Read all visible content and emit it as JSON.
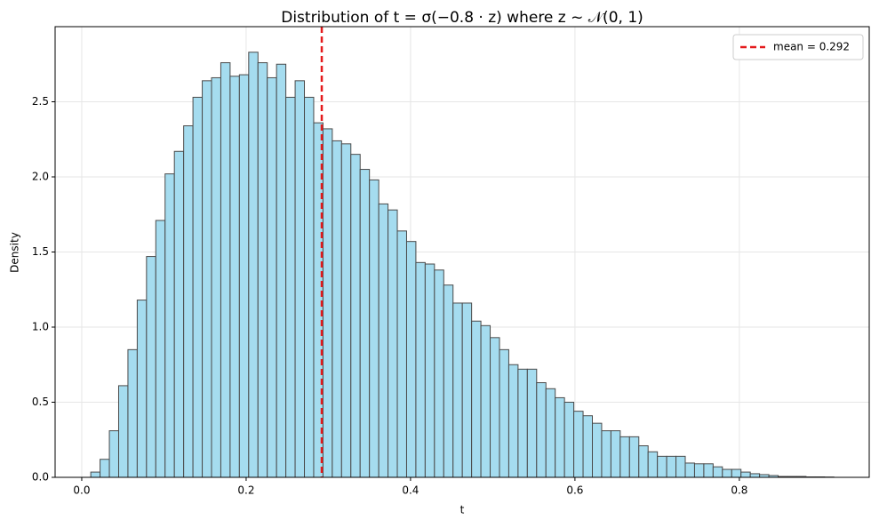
{
  "chart_data": {
    "type": "histogram",
    "title": "Distribution of t = σ(−0.8 · z) where z ~ 𝒩(0, 1)",
    "xlabel": "t",
    "ylabel": "Density",
    "bins": [
      0.011,
      0.0223,
      0.0336,
      0.0449,
      0.0562,
      0.0675,
      0.0788,
      0.0901,
      0.1014,
      0.1127,
      0.124,
      0.1353,
      0.1466,
      0.1579,
      0.1692,
      0.1805,
      0.1918,
      0.2031,
      0.2144,
      0.2257,
      0.237,
      0.2483,
      0.2596,
      0.2709,
      0.2822,
      0.2935,
      0.3048,
      0.3161,
      0.3274,
      0.3387,
      0.35,
      0.3613,
      0.3726,
      0.3839,
      0.3952,
      0.4065,
      0.4178,
      0.4291,
      0.4404,
      0.4517,
      0.463,
      0.4743,
      0.4856,
      0.4969,
      0.5082,
      0.5195,
      0.5308,
      0.5421,
      0.5534,
      0.5647,
      0.576,
      0.5873,
      0.5986,
      0.6099,
      0.6212,
      0.6325,
      0.6438,
      0.6551,
      0.6664,
      0.6777,
      0.689,
      0.7003,
      0.7116,
      0.7229,
      0.7342,
      0.7455,
      0.7568,
      0.7681,
      0.7794,
      0.7907,
      0.802,
      0.8133,
      0.8246,
      0.8359,
      0.8472,
      0.8585,
      0.8698,
      0.8811,
      0.8924,
      0.9037,
      0.915
    ],
    "values": [
      0.035,
      0.12,
      0.31,
      0.61,
      0.85,
      1.18,
      1.47,
      1.71,
      2.02,
      2.17,
      2.34,
      2.53,
      2.64,
      2.66,
      2.76,
      2.67,
      2.68,
      2.83,
      2.76,
      2.66,
      2.75,
      2.53,
      2.64,
      2.53,
      2.36,
      2.32,
      2.24,
      2.22,
      2.15,
      2.05,
      1.98,
      1.82,
      1.78,
      1.64,
      1.57,
      1.43,
      1.42,
      1.38,
      1.28,
      1.16,
      1.16,
      1.04,
      1.01,
      0.93,
      0.85,
      0.75,
      0.72,
      0.72,
      0.63,
      0.59,
      0.53,
      0.5,
      0.44,
      0.41,
      0.36,
      0.31,
      0.31,
      0.27,
      0.27,
      0.21,
      0.17,
      0.14,
      0.14,
      0.14,
      0.095,
      0.09,
      0.09,
      0.07,
      0.053,
      0.053,
      0.035,
      0.024,
      0.018,
      0.012,
      0.006,
      0.006,
      0.006,
      0.003,
      0.003,
      0.002
    ],
    "color": "#a5dcef",
    "edgecolor": "#4a4a4a",
    "xlim": [
      -0.0324,
      0.958
    ],
    "ylim": [
      0,
      3.0
    ],
    "xticks": [
      {
        "value": 0,
        "label": "0.0"
      },
      0.2,
      0.4,
      0.6,
      0.8
    ],
    "yticks": [
      {
        "value": 0,
        "label": "0.0"
      },
      0.5,
      {
        "value": 1,
        "label": "1.0"
      },
      1.5,
      {
        "value": 2,
        "label": "2.0"
      },
      2.5
    ],
    "grid": true,
    "legend": "upper right",
    "annotations": [
      {
        "value": 0.292,
        "label": "mean = 0.292",
        "color": "#e41a1c"
      }
    ]
  }
}
